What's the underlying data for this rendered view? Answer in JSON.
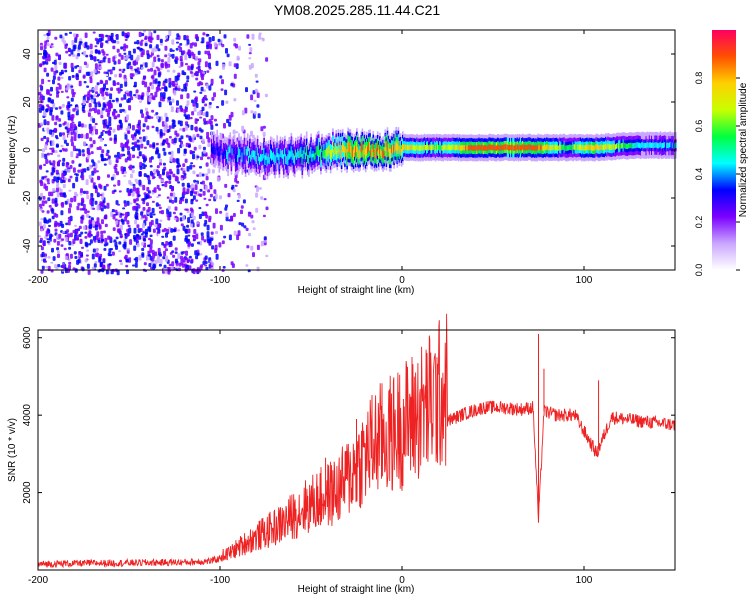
{
  "title": "YM08.2025.285.11.44.C21",
  "chart_data": [
    {
      "type": "heatmap",
      "name": "spectrogram",
      "xlabel": "Height of straight line (km)",
      "ylabel": "Frequency (Hz)",
      "xlim": [
        -200,
        150
      ],
      "ylim": [
        -50,
        50
      ],
      "xticks": [
        -200,
        -100,
        0,
        100
      ],
      "yticks": [
        -40,
        -20,
        0,
        20,
        40
      ],
      "colorbar": {
        "label": "Normalized spectral amplitude",
        "range": [
          0,
          1
        ],
        "ticks": [
          0.0,
          0.2,
          0.4,
          0.6,
          0.8
        ],
        "colors": [
          "#ffffff",
          "#c9a6ff",
          "#7b00ff",
          "#0000ff",
          "#00ffff",
          "#00ff40",
          "#c8ff00",
          "#ffd000",
          "#ff5000",
          "#ff0060"
        ]
      },
      "noise_region_x": [
        -200,
        -80
      ],
      "ridge": [
        {
          "x": -105,
          "f": 0,
          "amp": 0.35
        },
        {
          "x": -90,
          "f": -2,
          "amp": 0.4
        },
        {
          "x": -70,
          "f": -3,
          "amp": 0.45
        },
        {
          "x": -50,
          "f": -2,
          "amp": 0.5
        },
        {
          "x": -30,
          "f": 0,
          "amp": 0.8
        },
        {
          "x": -10,
          "f": 0,
          "amp": 0.85
        },
        {
          "x": 0,
          "f": 1,
          "amp": 0.75
        },
        {
          "x": 20,
          "f": 1,
          "amp": 0.6
        },
        {
          "x": 40,
          "f": 1,
          "amp": 0.9
        },
        {
          "x": 60,
          "f": 1,
          "amp": 0.92
        },
        {
          "x": 75,
          "f": 1,
          "amp": 0.85
        },
        {
          "x": 90,
          "f": 1,
          "amp": 0.55
        },
        {
          "x": 105,
          "f": 1,
          "amp": 0.8
        },
        {
          "x": 130,
          "f": 2,
          "amp": 0.45
        },
        {
          "x": 150,
          "f": 2,
          "amp": 0.4
        }
      ]
    },
    {
      "type": "line",
      "name": "snr",
      "xlabel": "Height of straight line (km)",
      "ylabel": "SNR (10 * v/v)",
      "xlim": [
        -200,
        150
      ],
      "ylim": [
        0,
        6200
      ],
      "xticks": [
        -200,
        -100,
        0,
        100
      ],
      "yticks": [
        2000,
        4000,
        6000
      ],
      "color": "#ee2222",
      "series": [
        {
          "name": "SNR",
          "x": [
            -200,
            -180,
            -160,
            -140,
            -120,
            -105,
            -95,
            -85,
            -75,
            -65,
            -55,
            -45,
            -35,
            -25,
            -15,
            -5,
            5,
            15,
            25,
            35,
            45,
            55,
            65,
            72,
            75,
            78,
            85,
            95,
            107,
            115,
            130,
            150
          ],
          "y": [
            150,
            170,
            180,
            190,
            200,
            230,
            350,
            600,
            800,
            1000,
            1300,
            1500,
            1700,
            2200,
            2700,
            2900,
            3200,
            3500,
            3850,
            4050,
            4200,
            4200,
            4150,
            4200,
            1300,
            4100,
            4000,
            4000,
            3000,
            3950,
            3850,
            3750
          ]
        }
      ],
      "spikes": [
        {
          "x": -42,
          "y": 2900
        },
        {
          "x": -25,
          "y": 3900
        },
        {
          "x": -2,
          "y": 4600
        },
        {
          "x": 75,
          "y": 6100
        },
        {
          "x": 78,
          "y": 5200
        },
        {
          "x": 108,
          "y": 4900
        }
      ]
    }
  ]
}
